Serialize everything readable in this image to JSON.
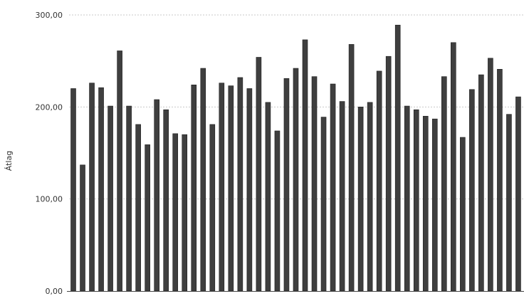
{
  "chart_data": {
    "type": "bar",
    "title": "",
    "xlabel": "",
    "ylabel": "Átlag",
    "ylim": [
      0,
      300
    ],
    "yticks": [
      "0,00",
      "100,00",
      "200,00",
      "300,00"
    ],
    "yticks_values": [
      0,
      100,
      200,
      300
    ],
    "grid": true,
    "legend": "none",
    "bar_color": "#3f3f3f",
    "values": [
      220,
      137,
      226,
      221,
      201,
      261,
      201,
      181,
      159,
      208,
      197,
      171,
      170,
      224,
      242,
      181,
      226,
      223,
      232,
      220,
      254,
      205,
      174,
      231,
      242,
      273,
      233,
      189,
      225,
      206,
      268,
      200,
      205,
      239,
      255,
      289,
      201,
      197,
      190,
      187,
      233,
      270,
      167,
      219,
      235,
      253,
      241,
      192,
      211
    ]
  }
}
